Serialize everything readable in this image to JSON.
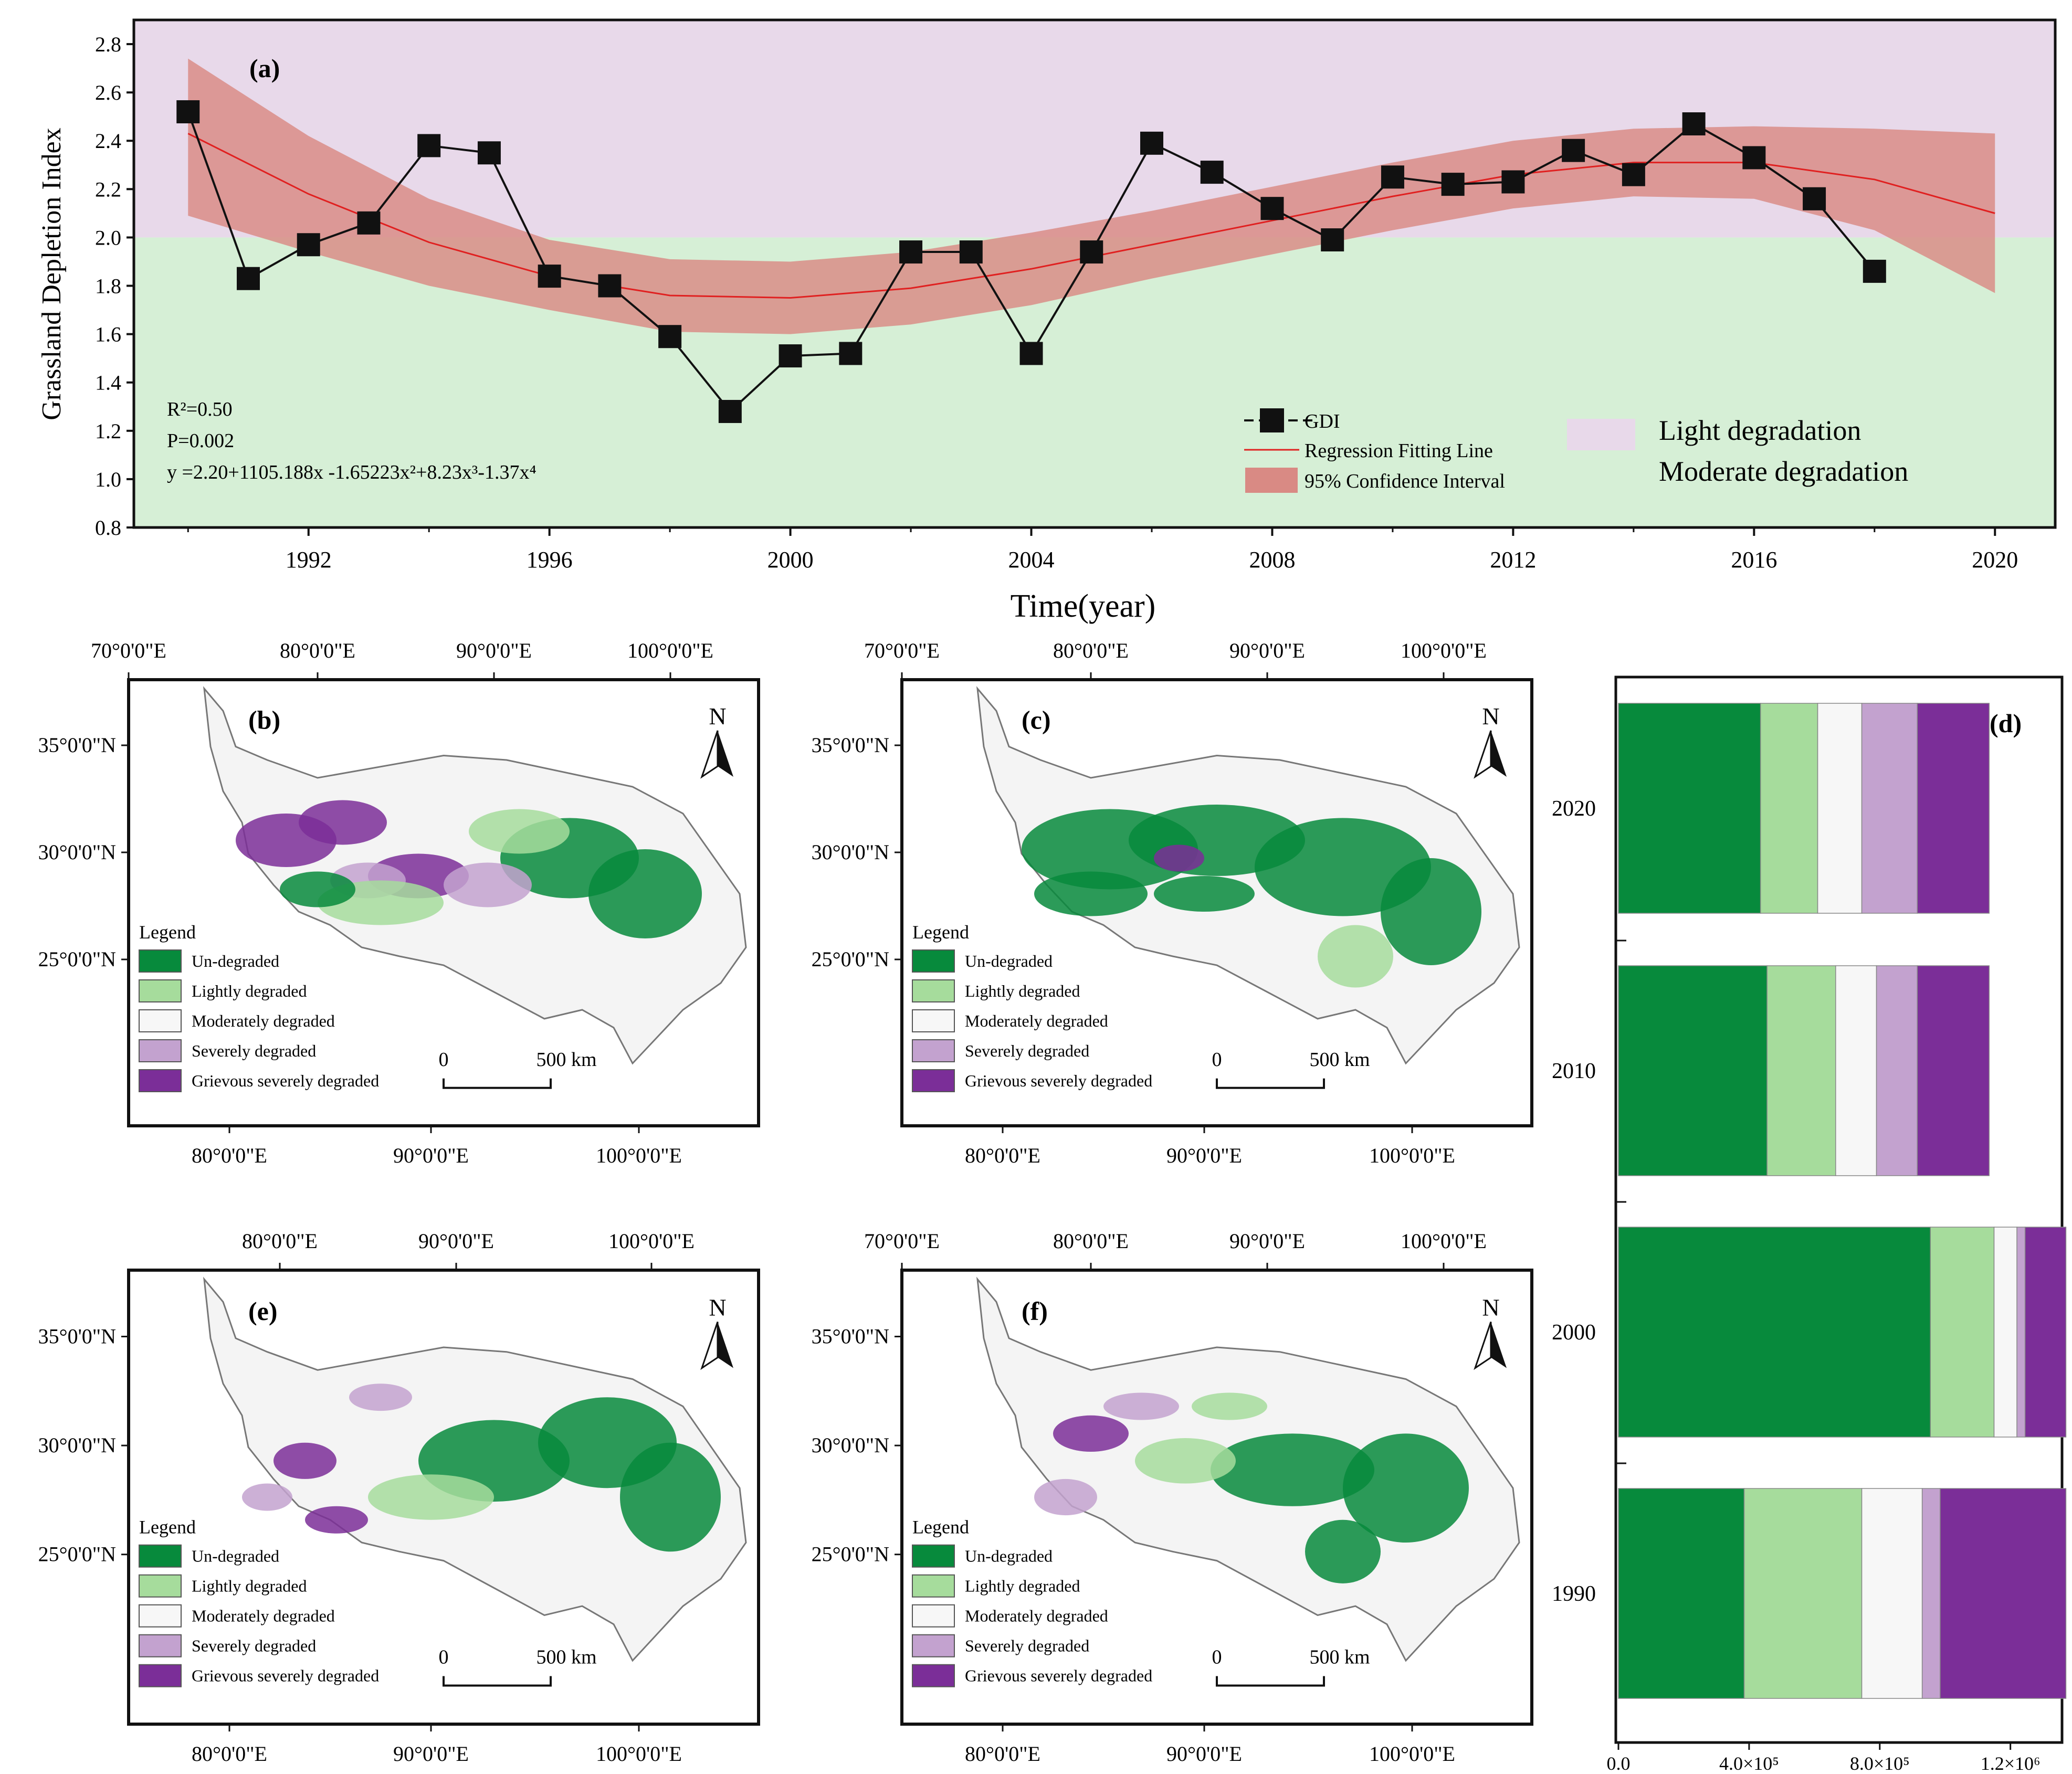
{
  "colors": {
    "light_band": "#e8d9ea",
    "moderate_band": "#d6efd6",
    "ci_fill": "#d98a84",
    "regression": "#e02020",
    "gdi": "#111111",
    "undegraded": "#078a3c",
    "lightly": "#a6dc9c",
    "moderately": "#f7f7f7",
    "severely": "#c3a2cf",
    "grievous": "#7b2e98"
  },
  "chart_data": [
    {
      "type": "line",
      "panel": "(a)",
      "xlabel": "Time(year)",
      "ylabel": "Grassland Depletion Index",
      "xlim": [
        1989.1,
        2021.0
      ],
      "ylim": [
        0.8,
        2.9
      ],
      "x_ticks": [
        1992,
        1996,
        2000,
        2004,
        2008,
        2012,
        2016,
        2020
      ],
      "y_ticks": [
        "0.8",
        "1.0",
        "1.2",
        "1.4",
        "1.6",
        "1.8",
        "2.0",
        "2.2",
        "2.4",
        "2.6",
        "2.8"
      ],
      "bands": [
        {
          "name": "Light degradation",
          "from": 2.0,
          "to": 2.9
        },
        {
          "name": "Moderate degradation",
          "from": 0.8,
          "to": 2.0
        }
      ],
      "series": [
        {
          "name": "GDI",
          "x": [
            1990,
            1991,
            1992,
            1993,
            1994,
            1995,
            1996,
            1997,
            1998,
            1999,
            2000,
            2001,
            2002,
            2003,
            2004,
            2005,
            2006,
            2007,
            2008,
            2009,
            2010,
            2011,
            2012,
            2013,
            2014,
            2015,
            2016,
            2017,
            2018
          ],
          "values": [
            2.52,
            1.83,
            1.97,
            2.06,
            2.38,
            2.35,
            1.84,
            1.8,
            1.59,
            1.28,
            1.51,
            1.52,
            1.94,
            1.94,
            1.52,
            1.94,
            2.39,
            2.27,
            2.12,
            1.99,
            2.25,
            2.22,
            2.23,
            2.36,
            2.26,
            2.47,
            2.33,
            2.16,
            1.86
          ]
        },
        {
          "name": "Regression Fitting Line",
          "x": [
            1990,
            1992,
            1994,
            1996,
            1998,
            2000,
            2002,
            2004,
            2006,
            2008,
            2010,
            2012,
            2014,
            2016,
            2018,
            2020
          ],
          "values": [
            2.43,
            2.18,
            1.98,
            1.84,
            1.76,
            1.75,
            1.79,
            1.87,
            1.97,
            2.07,
            2.17,
            2.26,
            2.31,
            2.31,
            2.24,
            2.1
          ]
        },
        {
          "name": "95% Confidence Interval",
          "x": [
            1990,
            1992,
            1994,
            1996,
            1998,
            2000,
            2002,
            2004,
            2006,
            2008,
            2010,
            2012,
            2014,
            2016,
            2018,
            2020
          ],
          "upper": [
            2.74,
            2.42,
            2.16,
            1.99,
            1.91,
            1.9,
            1.94,
            2.02,
            2.11,
            2.21,
            2.31,
            2.4,
            2.45,
            2.46,
            2.45,
            2.43
          ],
          "lower": [
            2.09,
            1.94,
            1.8,
            1.7,
            1.61,
            1.6,
            1.64,
            1.72,
            1.83,
            1.93,
            2.03,
            2.12,
            2.17,
            2.16,
            2.03,
            1.77
          ]
        }
      ],
      "annotations": {
        "panel_label": "(a)",
        "r2": "R²=0.50",
        "p": "P=0.002",
        "equation": "y =2.20+1105.188x -1.65223x²+8.23x³-1.37x⁴"
      },
      "legend": {
        "gdi": "GDI",
        "regression": "Regression Fitting Line",
        "ci": "95% Confidence Interval",
        "light": "Light degradation",
        "moderate": "Moderate degradation"
      }
    },
    {
      "type": "bar",
      "orientation": "horizontal-stacked",
      "panel": "(d)",
      "categories": [
        "2020",
        "2010",
        "2000",
        "1990"
      ],
      "xlim": [
        0,
        1350000
      ],
      "x_ticks": [
        {
          "value": 0,
          "label": "0.0"
        },
        {
          "value": 400000,
          "label": "4.0×10⁵"
        },
        {
          "value": 800000,
          "label": "8.0×10⁵"
        },
        {
          "value": 1200000,
          "label": "1.2×10⁶"
        }
      ],
      "series": [
        {
          "name": "Un-degraded",
          "values": [
            435000,
            455000,
            955000,
            385000
          ]
        },
        {
          "name": "Lightly degraded",
          "values": [
            175000,
            210000,
            195000,
            360000
          ]
        },
        {
          "name": "Moderately degraded",
          "values": [
            135000,
            125000,
            70000,
            185000
          ]
        },
        {
          "name": "Severely degraded",
          "values": [
            170000,
            125000,
            25000,
            55000
          ]
        },
        {
          "name": "Grievous severely degraded",
          "values": [
            220000,
            220000,
            125000,
            385000
          ]
        }
      ]
    }
  ],
  "maps": {
    "panels": [
      {
        "id": "b",
        "label": "(b)",
        "top_ticks": [
          "70°0'0\"E",
          "80°0'0\"E",
          "90°0'0\"E",
          "100°0'0\"E"
        ],
        "bottom_ticks": [
          "80°0'0\"E",
          "90°0'0\"E",
          "100°0'0\"E"
        ],
        "left_ticks": [
          "35°0'0\"N",
          "30°0'0\"N",
          "25°0'0\"N"
        ]
      },
      {
        "id": "c",
        "label": "(c)",
        "top_ticks": [
          "70°0'0\"E",
          "80°0'0\"E",
          "90°0'0\"E",
          "100°0'0\"E"
        ],
        "bottom_ticks": [
          "80°0'0\"E",
          "90°0'0\"E",
          "100°0'0\"E"
        ],
        "left_ticks": [
          "35°0'0\"N",
          "30°0'0\"N",
          "25°0'0\"N"
        ]
      },
      {
        "id": "e",
        "label": "(e)",
        "top_ticks": [
          "80°0'0\"E",
          "90°0'0\"E",
          "100°0'0\"E"
        ],
        "bottom_ticks": [
          "80°0'0\"E",
          "90°0'0\"E",
          "100°0'0\"E"
        ],
        "left_ticks": [
          "35°0'0\"N",
          "30°0'0\"N",
          "25°0'0\"N"
        ]
      },
      {
        "id": "f",
        "label": "(f)",
        "top_ticks": [
          "70°0'0\"E",
          "80°0'0\"E",
          "90°0'0\"E",
          "100°0'0\"E"
        ],
        "bottom_ticks": [
          "80°0'0\"E",
          "90°0'0\"E",
          "100°0'0\"E"
        ],
        "left_ticks": [
          "35°0'0\"N",
          "30°0'0\"N",
          "25°0'0\"N"
        ]
      }
    ],
    "legend_title": "Legend",
    "legend_items": [
      "Un-degraded",
      "Lightly degraded",
      "Moderately degraded",
      "Severely degraded",
      "Grievous severely degraded"
    ],
    "north": "N",
    "scale_start": "0",
    "scale_end": "500 km"
  }
}
